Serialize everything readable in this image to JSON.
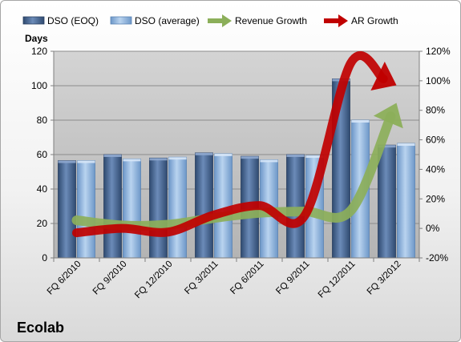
{
  "chart_data": {
    "type": "bar",
    "title": "",
    "company": "Ecolab",
    "ylabel_left": "Days",
    "categories": [
      "FQ 6/2010",
      "FQ 9/2010",
      "FQ 12/2010",
      "FQ 3/2011",
      "FQ 6/2011",
      "FQ 9/2011",
      "FQ 12/2011",
      "FQ 3/2012"
    ],
    "series": [
      {
        "name": "DSO (EOQ)",
        "kind": "bar",
        "axis": "left",
        "values": [
          56.5,
          60,
          58,
          61,
          59,
          60,
          104,
          65.5
        ]
      },
      {
        "name": "DSO (average)",
        "kind": "bar",
        "axis": "left",
        "values": [
          56.5,
          57.5,
          58.5,
          60.5,
          57,
          59.5,
          80,
          66.5
        ]
      },
      {
        "name": "Revenue Growth",
        "kind": "arrow",
        "axis": "right",
        "values": [
          5.5,
          2,
          2.5,
          7,
          10.5,
          11.5,
          12,
          85
        ]
      },
      {
        "name": "AR Growth",
        "kind": "arrow",
        "axis": "right",
        "values": [
          -3,
          0,
          -2.5,
          9,
          15.5,
          9,
          112,
          97
        ]
      }
    ],
    "ylim_left": [
      0,
      120
    ],
    "yticks_left": [
      0,
      20,
      40,
      60,
      80,
      100,
      120
    ],
    "ylim_right": [
      -20,
      120
    ],
    "yticks_right": [
      "-20%",
      "0%",
      "20%",
      "40%",
      "60%",
      "80%",
      "100%",
      "120%"
    ],
    "grid": true,
    "legend_position": "top",
    "colors": {
      "dso_eoq": "#4a6891",
      "dso_avg": "#87aedb",
      "revenue_growth": "#8caf5a",
      "ar_growth": "#c00000",
      "plot_bg": "#c0c0c0"
    }
  }
}
